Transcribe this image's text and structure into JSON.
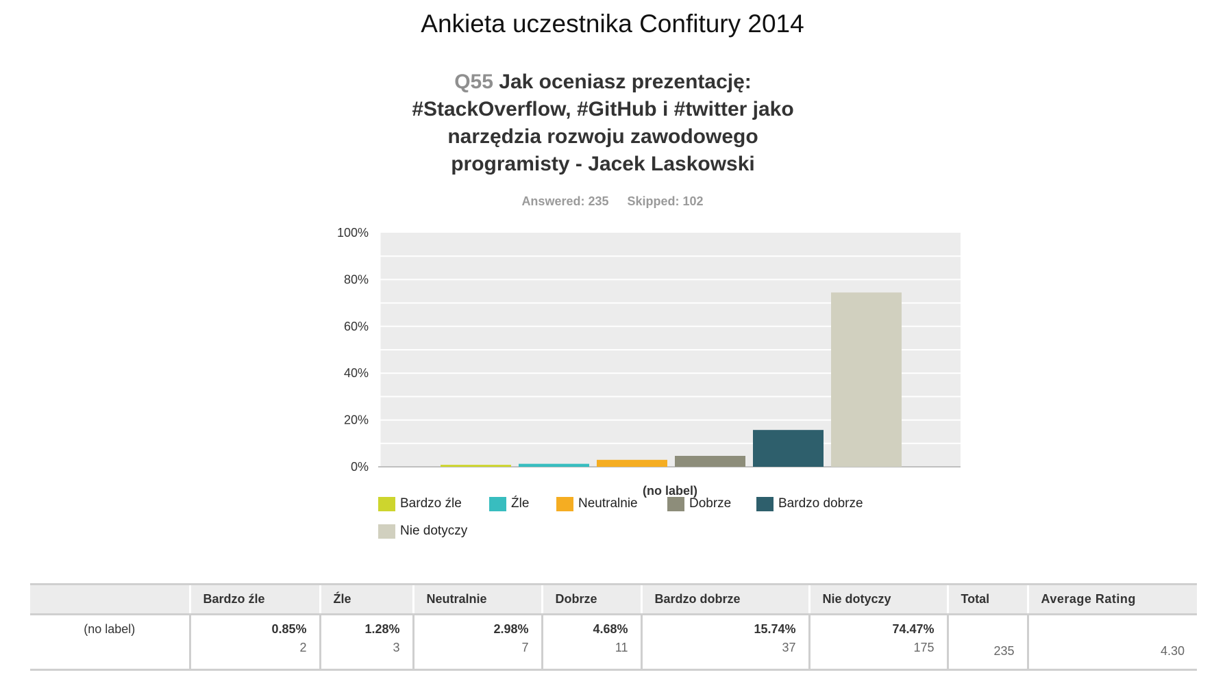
{
  "survey_title": "Ankieta uczestnika Confitury 2014",
  "question": {
    "number": "Q55",
    "title_lines": [
      "Jak oceniasz prezentację:",
      "#StackOverflow, #GitHub i #twitter jako",
      "narzędzia rozwoju zawodowego",
      "programisty  - Jacek Laskowski"
    ]
  },
  "stats": {
    "answered": "Answered: 235",
    "skipped": "Skipped: 102"
  },
  "chart_data": {
    "type": "bar",
    "categories": [
      "(no label)"
    ],
    "series": [
      {
        "name": "Bardzo źle",
        "values": [
          0.85
        ],
        "color": "#cdd52e"
      },
      {
        "name": "Źle",
        "values": [
          1.28
        ],
        "color": "#38bdbf"
      },
      {
        "name": "Neutralnie",
        "values": [
          2.98
        ],
        "color": "#f5ad22"
      },
      {
        "name": "Dobrze",
        "values": [
          4.68
        ],
        "color": "#8d8d7a"
      },
      {
        "name": "Bardzo dobrze",
        "values": [
          15.74
        ],
        "color": "#2e5f6c"
      },
      {
        "name": "Nie dotyczy",
        "values": [
          74.47
        ],
        "color": "#d1d0bf"
      }
    ],
    "y_ticks": [
      "100%",
      "80%",
      "60%",
      "40%",
      "20%",
      "0%"
    ],
    "ylim": [
      0,
      100
    ],
    "xlabel": "(no label)",
    "grid": true,
    "legend_position": "bottom"
  },
  "table": {
    "headers": [
      "",
      "Bardzo źle",
      "Źle",
      "Neutralnie",
      "Dobrze",
      "Bardzo dobrze",
      "Nie dotyczy",
      "Total",
      "Average Rating"
    ],
    "row": {
      "label": "(no label)",
      "cells": [
        {
          "pct": "0.85%",
          "count": "2"
        },
        {
          "pct": "1.28%",
          "count": "3"
        },
        {
          "pct": "2.98%",
          "count": "7"
        },
        {
          "pct": "4.68%",
          "count": "11"
        },
        {
          "pct": "15.74%",
          "count": "37"
        },
        {
          "pct": "74.47%",
          "count": "175"
        }
      ],
      "total": "235",
      "average": "4.30"
    }
  }
}
